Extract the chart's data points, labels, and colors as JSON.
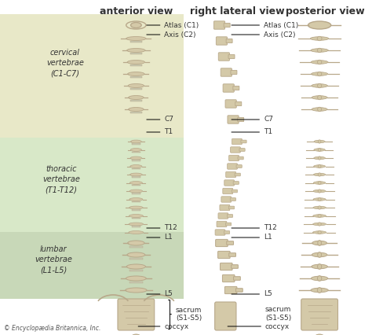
{
  "bg_color": "#ffffff",
  "cervical_color": "#e8e8c8",
  "thoracic_color": "#d8e8c8",
  "lumbar_color": "#c8d8b8",
  "title_anterior": "anterior view",
  "title_right_lateral": "right lateral view",
  "title_posterior": "posterior view",
  "copyright": "© Encyclopædia Britannica, Inc.",
  "labels_anterior": [
    "Atlas (C1)",
    "Axis (C2)",
    "C7",
    "T1",
    "T12",
    "L1",
    "L5",
    "sacrum\n(S1-S5)",
    "coccyx"
  ],
  "labels_right_lateral": [
    "Atlas (C1)",
    "Axis (C2)",
    "C7",
    "T1",
    "T12",
    "L1",
    "L5",
    "sacrum\n(S1-S5)",
    "coccyx"
  ],
  "region_labels": [
    "cervical\nvertebrae\n(C1-C7)",
    "thoracic\nvertebrae\n(T1-T12)",
    "lumbar\nvertebrae\n(L1-L5)"
  ],
  "spine_color": "#d4c9a8",
  "spine_dark": "#b8a88a",
  "text_color": "#333333"
}
